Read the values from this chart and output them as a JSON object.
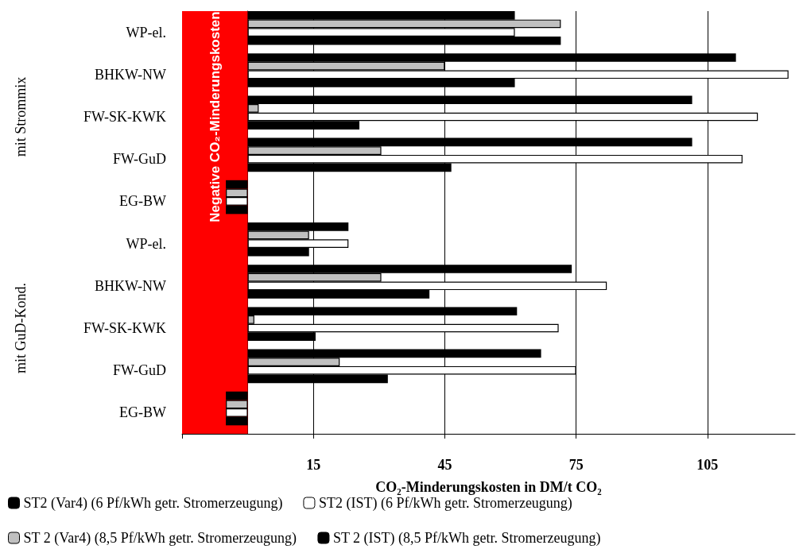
{
  "chart_data": {
    "type": "bar",
    "orientation": "horizontal",
    "categories": [
      "WP-el.",
      "BHKW-NW",
      "FW-SK-KWK",
      "FW-GuD",
      "EG-BW",
      "WP-el.",
      "BHKW-NW",
      "FW-SK-KWK",
      "FW-GuD",
      "EG-BW"
    ],
    "series": [
      {
        "name": "ST 2 (IST) (8,5 Pf/kWh getr. Stromerzeugung)",
        "color": "#000000",
        "values": [
          61,
          111.5,
          101.5,
          101.5,
          -5,
          23,
          74,
          61.5,
          67,
          -5
        ]
      },
      {
        "name": "ST 2 (Var4) (8,5 Pf/kWh getr. Stromerzeugung)",
        "color": "#c0c0c0",
        "values": [
          71.5,
          45,
          2.5,
          30.5,
          -5,
          14,
          30.5,
          1.5,
          21,
          -5
        ]
      },
      {
        "name": "ST2 (IST) (6 Pf/kWh getr. Stromerzeugung)",
        "color": "#ffffff",
        "values": [
          61,
          123.5,
          116.5,
          113,
          -5,
          23,
          82,
          71,
          75,
          -5
        ]
      },
      {
        "name": "ST2 (Var4) (6 Pf/kWh getr. Stromerzeugung)",
        "color": "#000000",
        "values": [
          71.5,
          61,
          25.5,
          46.5,
          -5,
          14,
          41.5,
          15.5,
          32,
          -5
        ]
      }
    ],
    "xlabel": "CO₂-Minderungskosten in DM/t CO₂",
    "xlim": [
      -15,
      125
    ],
    "xticks": [
      {
        "value": -15,
        "label": null
      },
      15,
      45,
      75,
      105
    ],
    "bands": [
      {
        "axis": "x",
        "from": -15,
        "to": 0,
        "label": "Negative CO₂-Minderungskosten",
        "color": "#ff0000"
      }
    ],
    "annotations": [
      "mit Strommix",
      "mit GuD-Kond."
    ],
    "grid": "x",
    "legend": "bottom"
  }
}
